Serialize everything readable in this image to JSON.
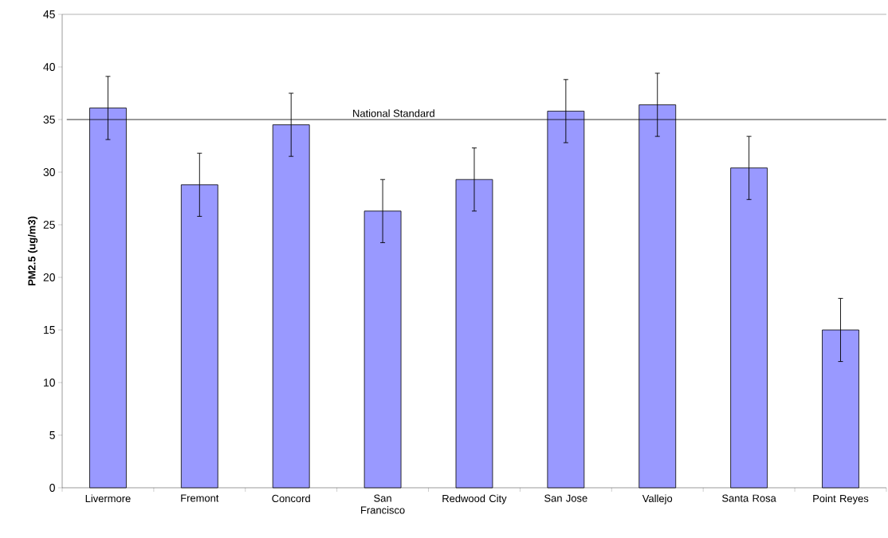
{
  "chart_data": {
    "type": "bar",
    "ylabel": "PM2.5 (ug/m3)",
    "categories": [
      "Livermore",
      "Fremont",
      "Concord",
      "San Francisco",
      "Redwood City",
      "San Jose",
      "Vallejo",
      "Santa Rosa",
      "Point Reyes"
    ],
    "values": [
      36.1,
      28.8,
      34.5,
      26.3,
      29.3,
      35.8,
      36.4,
      30.4,
      15.0
    ],
    "errors": [
      3,
      3,
      3,
      3,
      3,
      3,
      3,
      3,
      3
    ],
    "color": "#9999ff",
    "ylim": [
      0,
      45
    ],
    "yticks": [
      0,
      5,
      10,
      15,
      20,
      25,
      30,
      35,
      40,
      45
    ],
    "ref_lines": [
      {
        "axis": "y",
        "value": 35,
        "label": "National Standard",
        "color": "#000000"
      }
    ],
    "grid": false
  }
}
